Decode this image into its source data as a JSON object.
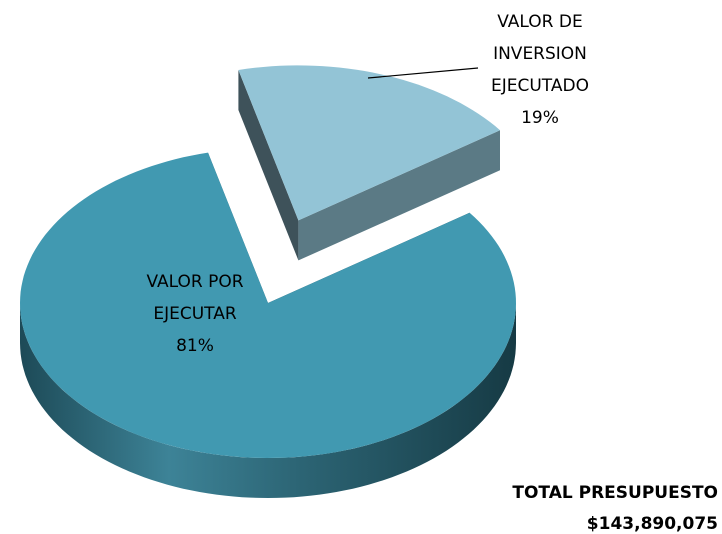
{
  "chart_data": {
    "type": "pie",
    "categories": [
      "VALOR DE INVERSION EJECUTADO",
      "VALOR POR EJECUTAR"
    ],
    "values": [
      19,
      81
    ],
    "value_labels": [
      "19%",
      "81%"
    ],
    "colors": [
      "#93c4d6",
      "#4199b1"
    ],
    "annotations": [
      "TOTAL PRESUPUESTO",
      "$143,890,075"
    ]
  }
}
